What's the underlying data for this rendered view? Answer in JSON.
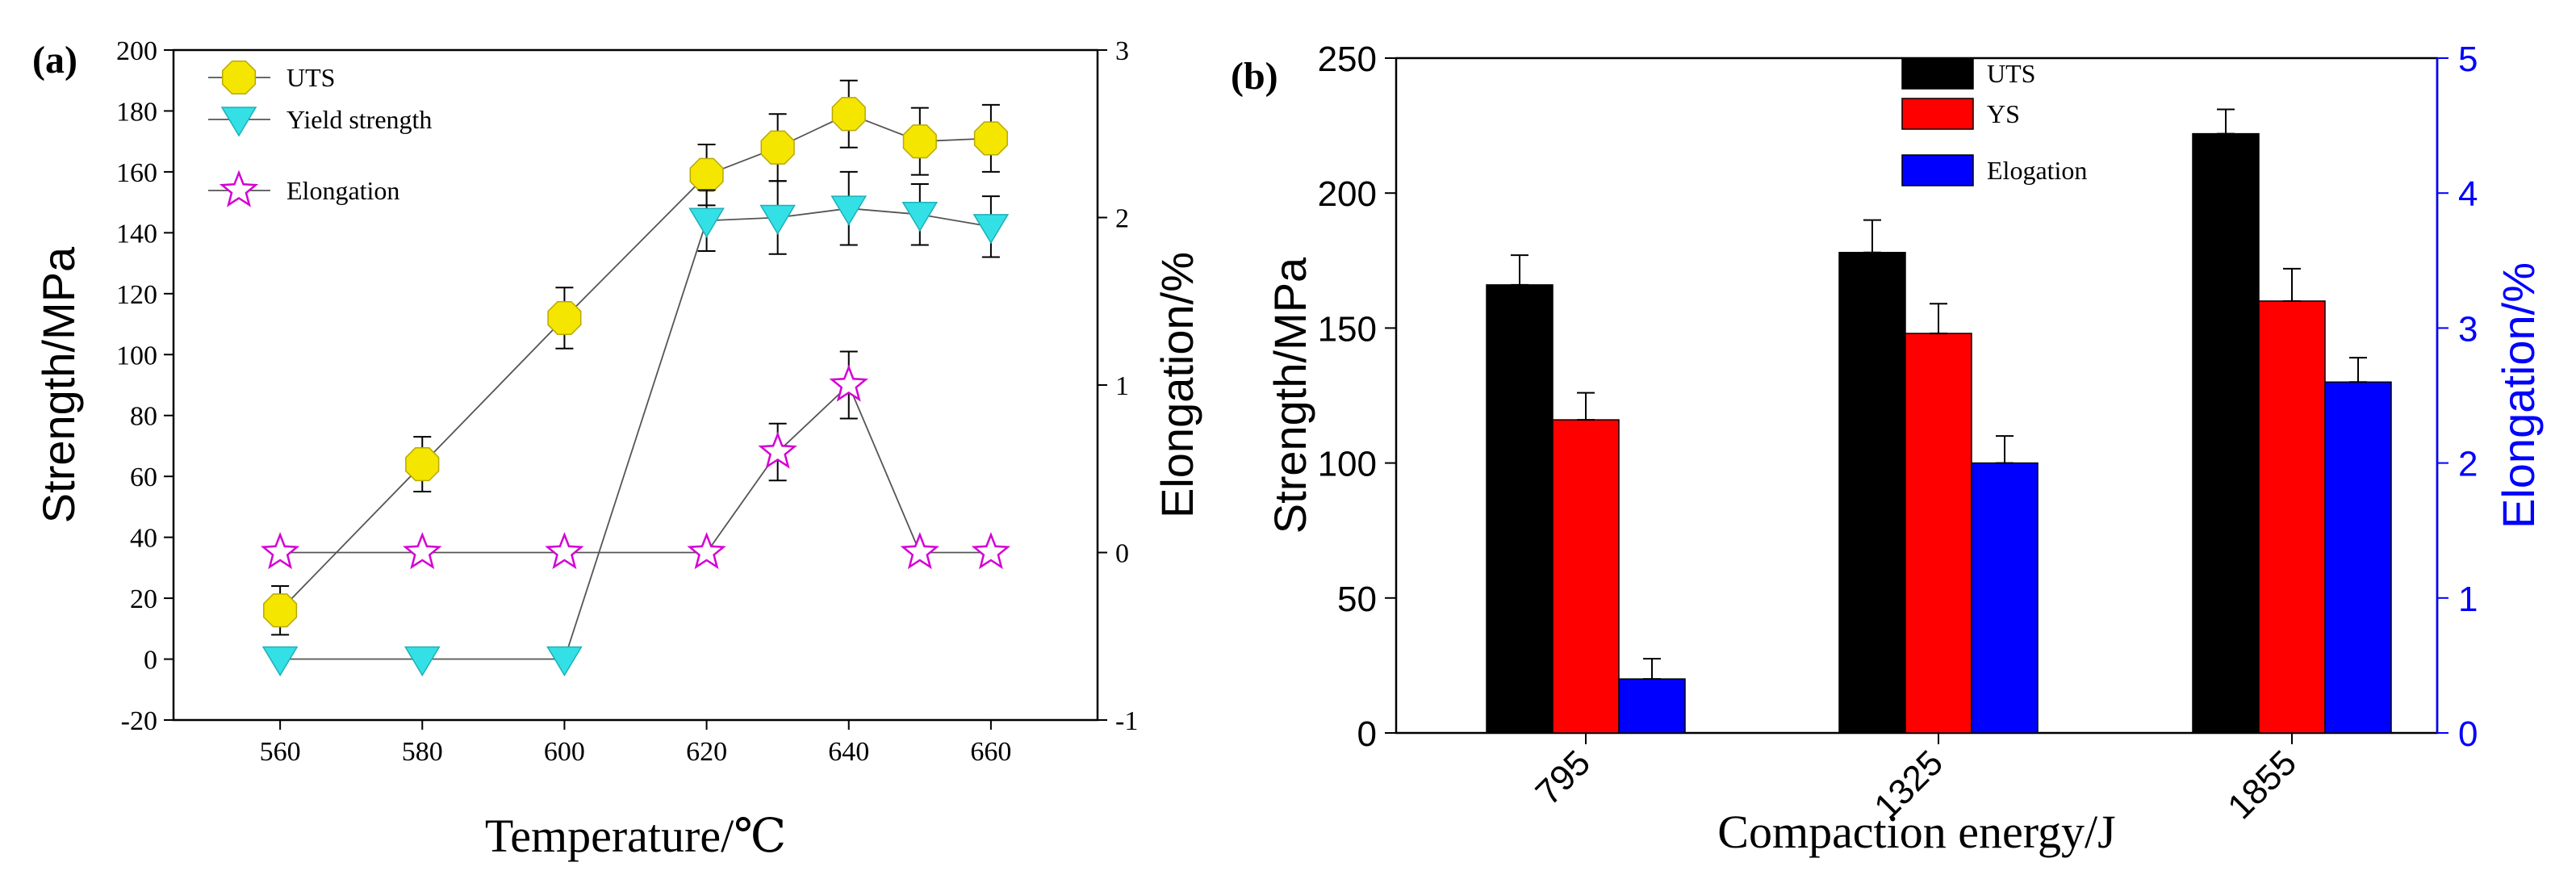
{
  "chart_data": [
    {
      "type": "line",
      "panel_label": "(a)",
      "xlabel": "Temperature/℃",
      "ylabel": "Strength/MPa",
      "y2label": "Elongation/%",
      "xlim": [
        545,
        675
      ],
      "ylim": [
        -20,
        200
      ],
      "y2lim": [
        -1,
        3
      ],
      "xticks": [
        560,
        580,
        600,
        620,
        640,
        660
      ],
      "yticks": [
        -20,
        0,
        20,
        40,
        60,
        80,
        100,
        120,
        140,
        160,
        180,
        200
      ],
      "y2ticks": [
        -1,
        0,
        1,
        2,
        3
      ],
      "legend_position": "top-left",
      "series": [
        {
          "name": "UTS",
          "axis": "left",
          "marker": "octagon",
          "color": "#f5e600",
          "x": [
            560,
            580,
            600,
            620,
            630,
            640,
            650,
            660
          ],
          "values": [
            16,
            64,
            112,
            159,
            168,
            179,
            170,
            171
          ],
          "errors": [
            8,
            9,
            10,
            10,
            11,
            11,
            11,
            11
          ]
        },
        {
          "name": "Yield strength",
          "axis": "left",
          "marker": "triangle-down",
          "color": "#33e0e6",
          "x": [
            560,
            580,
            600,
            620,
            630,
            640,
            650,
            660
          ],
          "values": [
            0,
            0,
            0,
            144,
            145,
            148,
            146,
            142
          ],
          "errors": [
            0,
            0,
            0,
            10,
            12,
            12,
            10,
            10
          ]
        },
        {
          "name": "Elongation",
          "axis": "right",
          "marker": "star",
          "color": "#d400d4",
          "x": [
            560,
            580,
            600,
            620,
            630,
            640,
            650,
            660
          ],
          "values": [
            0,
            0,
            0,
            0,
            0.6,
            1.0,
            0,
            0
          ],
          "errors": [
            0,
            0,
            0,
            0,
            0.17,
            0.2,
            0,
            0
          ]
        }
      ]
    },
    {
      "type": "bar",
      "panel_label": "(b)",
      "xlabel": "Compaction energy/J",
      "ylabel": "Strength/MPa",
      "y2label": "Elongation/%",
      "categories": [
        "795",
        "1325",
        "1855"
      ],
      "ylim": [
        0,
        250
      ],
      "y2lim": [
        0,
        5
      ],
      "yticks": [
        0,
        50,
        100,
        150,
        200,
        250
      ],
      "y2ticks": [
        0,
        1,
        2,
        3,
        4,
        5
      ],
      "legend_position": "top-center",
      "series": [
        {
          "name": "UTS",
          "axis": "left",
          "color": "#000000",
          "values": [
            166,
            178,
            222
          ],
          "errors": [
            11,
            12,
            9
          ]
        },
        {
          "name": "YS",
          "axis": "left",
          "color": "#ff0000",
          "values": [
            116,
            148,
            160
          ],
          "errors": [
            10,
            11,
            12
          ]
        },
        {
          "name": "Elogation",
          "axis": "right",
          "color": "#0000ff",
          "values": [
            0.4,
            2.0,
            2.6
          ],
          "errors": [
            0.15,
            0.2,
            0.18
          ]
        }
      ]
    }
  ]
}
